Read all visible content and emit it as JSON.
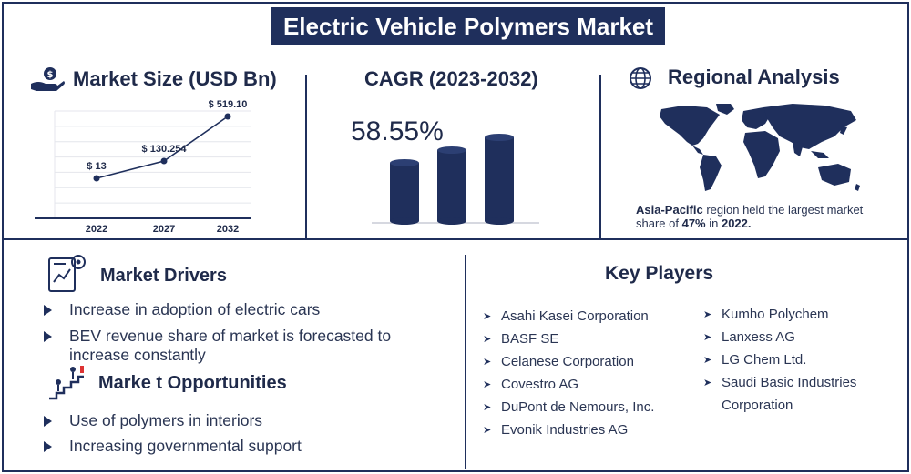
{
  "title": "Electric Vehicle Polymers Market",
  "market_size": {
    "heading": "Market Size (USD Bn)"
  },
  "chart_data": [
    {
      "type": "line",
      "title": "Market Size (USD Bn)",
      "categories": [
        "2022",
        "2027",
        "2032"
      ],
      "values": [
        13,
        130.254,
        519.1
      ],
      "data_labels": [
        "$ 13",
        "$ 130.254",
        "$ 519.10"
      ],
      "grid": true,
      "color": "#1f2f5c"
    },
    {
      "type": "bar",
      "title": "CAGR (2023-2032)",
      "annotation": "58.55%",
      "bars": 3,
      "color": "#1f2f5c"
    }
  ],
  "cagr": {
    "heading": "CAGR (2023-2032)",
    "value": "58.55%"
  },
  "regional": {
    "heading": "Regional Analysis",
    "region": "Asia-Pacific",
    "text_1": " region held the largest market share of ",
    "share": "47%",
    "text_2": " in ",
    "year": "2022."
  },
  "drivers": {
    "heading": "Market Drivers",
    "items": [
      "Increase in adoption of electric cars",
      "BEV revenue share of market is forecasted to increase constantly"
    ]
  },
  "opportunities": {
    "heading": "Marke t Opportunities",
    "items": [
      "Use of polymers in interiors",
      "Increasing governmental support"
    ]
  },
  "key_players": {
    "heading": "Key Players",
    "col1": [
      "Asahi Kasei Corporation",
      "BASF SE",
      "Celanese Corporation",
      "Covestro AG",
      "DuPont de Nemours, Inc.",
      "Evonik Industries AG"
    ],
    "col2": [
      "Kumho Polychem",
      "Lanxess AG",
      "LG Chem Ltd.",
      "Saudi Basic Industries Corporation"
    ]
  },
  "colors": {
    "primary": "#1f2f5c",
    "text": "#2a3553",
    "background": "#ffffff"
  }
}
